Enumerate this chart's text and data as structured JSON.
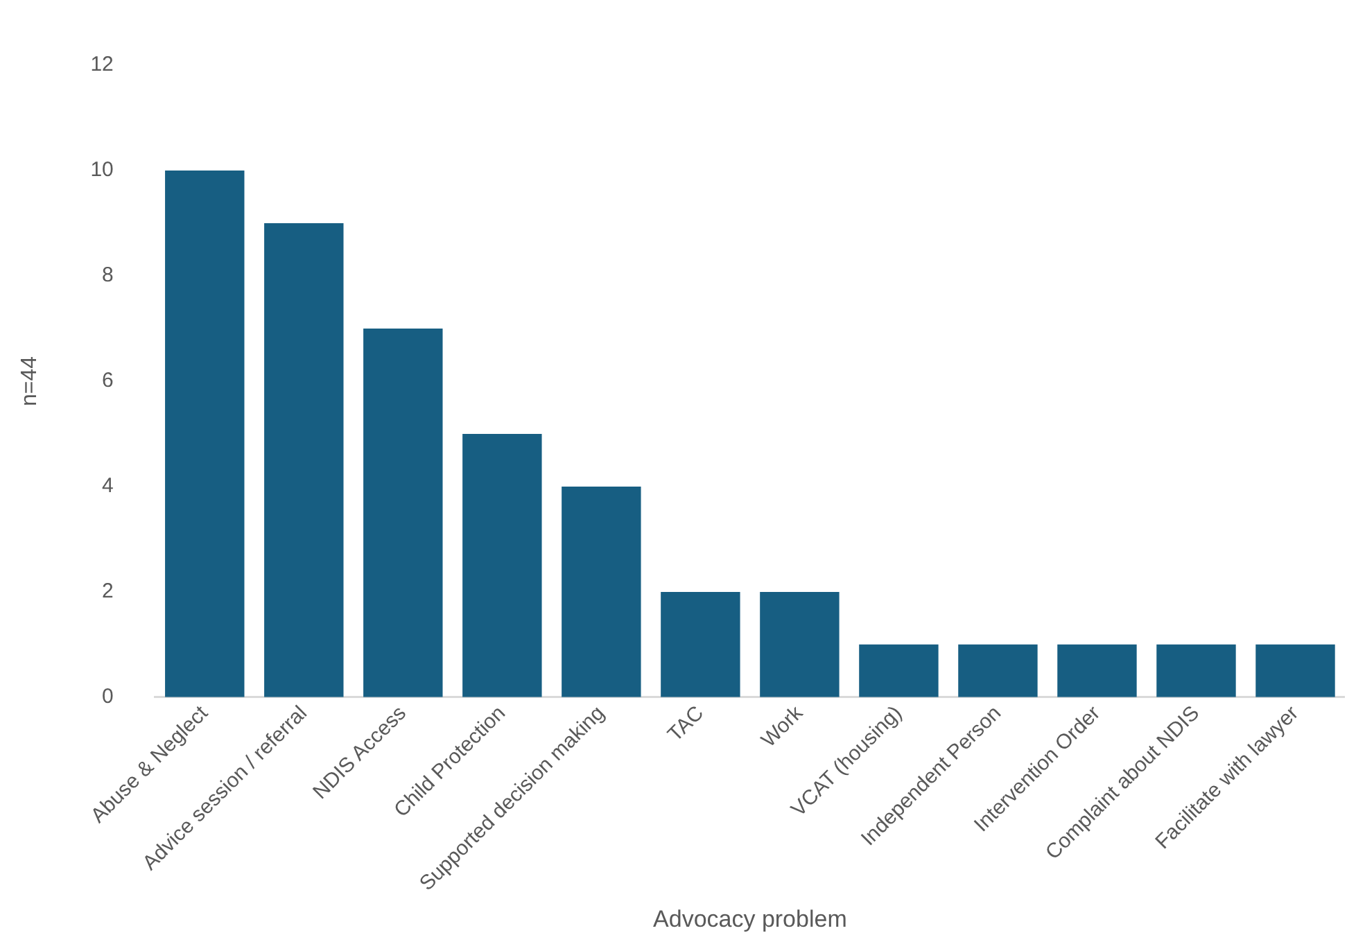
{
  "chart_data": {
    "type": "bar",
    "xlabel": "Advocacy problem",
    "ylabel": "n=44",
    "categories": [
      "Abuse & Neglect",
      "Advice session / referral",
      "NDIS Access",
      "Child Protection",
      "Supported decision making",
      "TAC",
      "Work",
      "VCAT (housing)",
      "Independent Person",
      "Intervention Order",
      "Complaint about NDIS",
      "Facilitate with lawyer"
    ],
    "values": [
      10,
      9,
      7,
      5,
      4,
      2,
      2,
      1,
      1,
      1,
      1,
      1
    ],
    "color": "#175e82",
    "ylim": [
      0,
      12
    ],
    "yticks": [
      0,
      2,
      4,
      6,
      8,
      10,
      12
    ],
    "grid": false,
    "legend": false
  }
}
